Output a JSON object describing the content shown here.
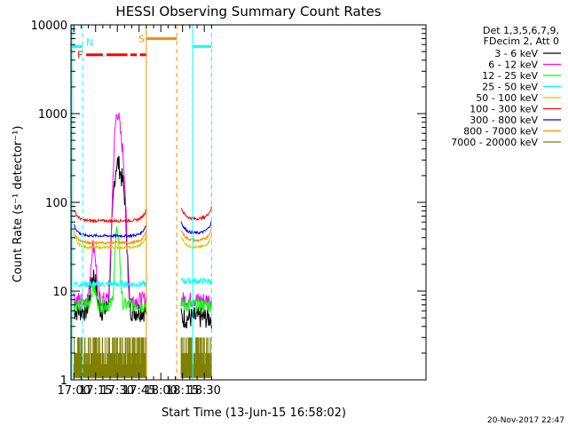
{
  "chart_data": {
    "type": "line",
    "title": "HESSI Observing Summary Count Rates",
    "xlabel": "Start Time (13-Jun-15 16:58:02)",
    "ylabel": "Count Rate (s⁻¹ detector⁻¹)",
    "ylim": [
      1,
      10000
    ],
    "y_scale": "log",
    "x_ticks": [
      "17:00",
      "17:15",
      "17:30",
      "17:45",
      "18:00",
      "18:15",
      "18:30"
    ],
    "y_ticks": [
      "1",
      "10",
      "100",
      "1000",
      "10000"
    ],
    "footer_date": "20-Nov-2017 22:47",
    "legend_header": [
      "Det 1,3,5,6,7,9,",
      "FDecim 2, Att 0"
    ],
    "legend_position": "right",
    "series": [
      {
        "name": "3 - 6 keV",
        "color": "#000000"
      },
      {
        "name": "6 - 12 keV",
        "color": "#ff00ff"
      },
      {
        "name": "12 - 25 keV",
        "color": "#00ff00"
      },
      {
        "name": "25 - 50 keV",
        "color": "#00ffff"
      },
      {
        "name": "50 - 100 keV",
        "color": "#cccc00"
      },
      {
        "name": "100 - 300 keV",
        "color": "#ff0000"
      },
      {
        "name": "300 - 800 keV",
        "color": "#0000ff"
      },
      {
        "name": "800 - 7000 keV",
        "color": "#ff8c00"
      },
      {
        "name": "7000 - 20000 keV",
        "color": "#808000"
      }
    ],
    "flags": [
      {
        "label": "N",
        "color": "#00ffff"
      },
      {
        "label": "F",
        "color": "#ff0000"
      },
      {
        "label": "S",
        "color": "#ff8c00"
      }
    ]
  }
}
